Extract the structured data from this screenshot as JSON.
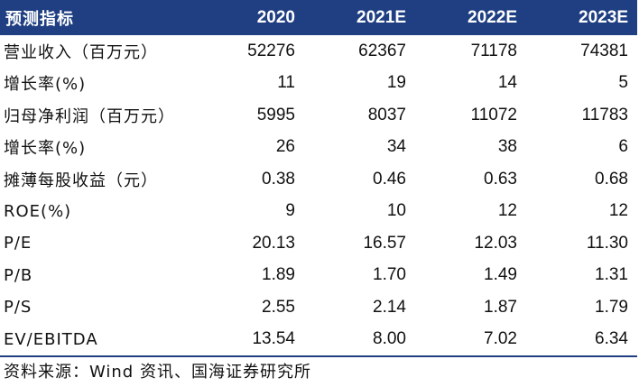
{
  "table": {
    "headers": [
      "预测指标",
      "2020",
      "2021E",
      "2022E",
      "2023E"
    ],
    "rows": [
      {
        "label": "营业收入（百万元）",
        "values": [
          "52276",
          "62367",
          "71178",
          "74381"
        ]
      },
      {
        "label": "增长率(%)",
        "values": [
          "11",
          "19",
          "14",
          "5"
        ]
      },
      {
        "label": "归母净利润（百万元）",
        "values": [
          "5995",
          "8037",
          "11072",
          "11783"
        ]
      },
      {
        "label": "增长率(%)",
        "values": [
          "26",
          "34",
          "38",
          "6"
        ]
      },
      {
        "label": "摊薄每股收益（元）",
        "values": [
          "0.38",
          "0.46",
          "0.63",
          "0.68"
        ]
      },
      {
        "label": "ROE(%)",
        "values": [
          "9",
          "10",
          "12",
          "12"
        ]
      },
      {
        "label": "P/E",
        "values": [
          "20.13",
          "16.57",
          "12.03",
          "11.30"
        ]
      },
      {
        "label": "P/B",
        "values": [
          "1.89",
          "1.70",
          "1.49",
          "1.31"
        ]
      },
      {
        "label": "P/S",
        "values": [
          "2.55",
          "2.14",
          "1.87",
          "1.79"
        ]
      },
      {
        "label": "EV/EBITDA",
        "values": [
          "13.54",
          "8.00",
          "7.02",
          "6.34"
        ]
      }
    ]
  },
  "source": "资料来源：Wind 资讯、国海证券研究所",
  "colors": {
    "header_bg": "#1f3f82",
    "header_text": "#ffffff"
  }
}
